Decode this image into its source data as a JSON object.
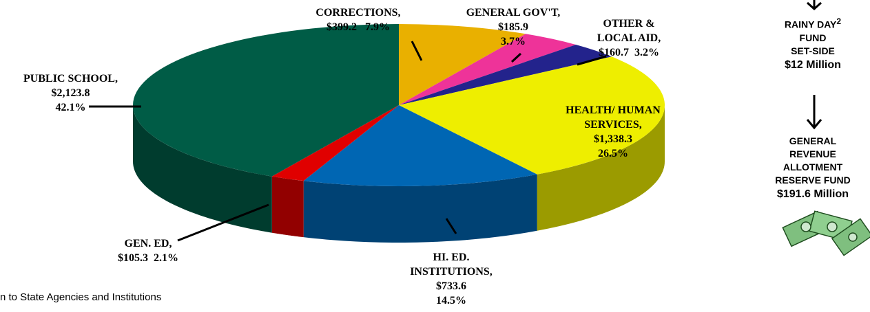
{
  "chart_data": {
    "type": "pie",
    "categories": [
      "CORRECTIONS,",
      "GENERAL GOV'T,",
      "OTHER & LOCAL AID,",
      "HEALTH/ HUMAN SERVICES,",
      "HI. ED. INSTITUTIONS,",
      "GEN. ED,",
      "PUBLIC SCHOOL,"
    ],
    "values": [
      399.2,
      185.9,
      160.7,
      1338.3,
      733.6,
      105.3,
      2123.8
    ],
    "value_labels": [
      "$399.2",
      "$185.9",
      "$160.7",
      "$1,338.3",
      "$733.6",
      "$105.3",
      "$2,123.8"
    ],
    "share_labels": [
      "7.9%",
      "3.7%",
      "3.2%",
      "26.5%",
      "14.5%",
      "2.1%",
      "42.1%"
    ],
    "colors": [
      "#e9b000",
      "#ee3399",
      "#23238c",
      "#eeee00",
      "#0066b3",
      "#e00000",
      "#005c46"
    ]
  },
  "sidebar": {
    "rainy_day": {
      "title": "RAINY DAY",
      "note": "2",
      "lines": [
        "FUND",
        "SET-SIDE"
      ],
      "amount": "$12 Million"
    },
    "reserve": {
      "lines": [
        "GENERAL",
        "REVENUE",
        "ALLOTMENT",
        "RESERVE FUND"
      ],
      "amount": "$191.6 Million"
    }
  },
  "footnote": "n to State Agencies and Institutions"
}
